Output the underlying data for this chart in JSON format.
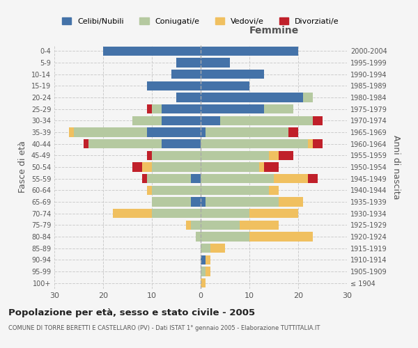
{
  "age_groups": [
    "100+",
    "95-99",
    "90-94",
    "85-89",
    "80-84",
    "75-79",
    "70-74",
    "65-69",
    "60-64",
    "55-59",
    "50-54",
    "45-49",
    "40-44",
    "35-39",
    "30-34",
    "25-29",
    "20-24",
    "15-19",
    "10-14",
    "5-9",
    "0-4"
  ],
  "birth_years": [
    "≤ 1904",
    "1905-1909",
    "1910-1914",
    "1915-1919",
    "1920-1924",
    "1925-1929",
    "1930-1934",
    "1935-1939",
    "1940-1944",
    "1945-1949",
    "1950-1954",
    "1955-1959",
    "1960-1964",
    "1965-1969",
    "1970-1974",
    "1975-1979",
    "1980-1984",
    "1985-1989",
    "1990-1994",
    "1995-1999",
    "2000-2004"
  ],
  "colors": {
    "celibi": "#4472a8",
    "coniugati": "#b5c9a0",
    "vedovi": "#f0c060",
    "divorziati": "#c0202a"
  },
  "male": {
    "celibi": [
      0,
      0,
      0,
      0,
      0,
      0,
      0,
      2,
      0,
      2,
      0,
      0,
      8,
      11,
      8,
      8,
      5,
      11,
      6,
      5,
      20
    ],
    "coniugati": [
      0,
      0,
      0,
      0,
      1,
      2,
      10,
      8,
      10,
      9,
      10,
      10,
      15,
      15,
      6,
      2,
      0,
      0,
      0,
      0,
      0
    ],
    "vedovi": [
      0,
      0,
      0,
      0,
      0,
      1,
      8,
      0,
      1,
      0,
      2,
      0,
      0,
      1,
      0,
      0,
      0,
      0,
      0,
      0,
      0
    ],
    "divorziati": [
      0,
      0,
      0,
      0,
      0,
      0,
      0,
      0,
      0,
      1,
      2,
      1,
      1,
      0,
      0,
      1,
      0,
      0,
      0,
      0,
      0
    ]
  },
  "female": {
    "celibi": [
      0,
      0,
      1,
      0,
      0,
      0,
      0,
      1,
      0,
      0,
      0,
      0,
      0,
      1,
      4,
      13,
      21,
      10,
      13,
      6,
      20
    ],
    "coniugati": [
      0,
      1,
      0,
      2,
      10,
      8,
      10,
      15,
      14,
      15,
      12,
      14,
      22,
      17,
      19,
      6,
      2,
      0,
      0,
      0,
      0
    ],
    "vedovi": [
      1,
      1,
      1,
      3,
      13,
      8,
      10,
      5,
      2,
      7,
      1,
      2,
      1,
      0,
      0,
      0,
      0,
      0,
      0,
      0,
      0
    ],
    "divorziati": [
      0,
      0,
      0,
      0,
      0,
      0,
      0,
      0,
      0,
      2,
      3,
      3,
      2,
      2,
      2,
      0,
      0,
      0,
      0,
      0,
      0
    ]
  },
  "xlim": 30,
  "title": "Popolazione per età, sesso e stato civile - 2005",
  "subtitle": "COMUNE DI TORRE BERETTI E CASTELLARO (PV) - Dati ISTAT 1° gennaio 2005 - Elaborazione TUTTITALIA.IT",
  "legend_labels": [
    "Celibi/Nubili",
    "Coniugati/e",
    "Vedovi/e",
    "Divorziati/e"
  ],
  "ylabel_left": "Fasce di età",
  "ylabel_right": "Anni di nascita",
  "header_femmine": "Femmine",
  "bg_color": "#f5f5f5",
  "grid_color": "#cccccc"
}
